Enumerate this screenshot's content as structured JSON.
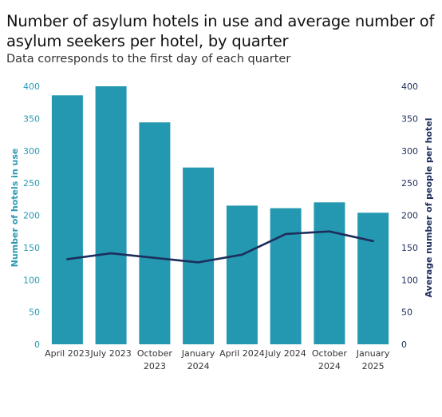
{
  "header": {
    "title": "Number of asylum hotels in use and average number of asylum seekers per hotel, by quarter",
    "subtitle": "Data corresponds to the first day of each quarter"
  },
  "colors": {
    "bar": "#2398b0",
    "line": "#1d2e5c",
    "left_axis": "#2a9ab2",
    "right_axis": "#1d2e5c"
  },
  "chart_data": {
    "type": "bar",
    "title": "Number of asylum hotels in use and average number of asylum seekers per hotel, by quarter",
    "subtitle": "Data corresponds to the first day of each quarter",
    "categories": [
      [
        "April 2023"
      ],
      [
        "July 2023"
      ],
      [
        "October",
        "2023"
      ],
      [
        "January",
        "2024"
      ],
      [
        "April 2024"
      ],
      [
        "July 2024"
      ],
      [
        "October",
        "2024"
      ],
      [
        "January",
        "2025"
      ]
    ],
    "series": [
      {
        "name": "Number of hotels in use",
        "type": "bar",
        "axis": "left",
        "values": [
          386,
          400,
          344,
          274,
          215,
          211,
          220,
          204
        ]
      },
      {
        "name": "Average number of people per hotel",
        "type": "line",
        "axis": "right",
        "values": [
          132,
          141,
          134,
          127,
          139,
          171,
          175,
          160
        ]
      }
    ],
    "ylabel_left": "Number of hotels in use",
    "ylabel_right": "Average number of people per hotel",
    "ylim_left": [
      0,
      400
    ],
    "ylim_right": [
      0,
      400
    ],
    "yticks": [
      0,
      50,
      100,
      150,
      200,
      250,
      300,
      350,
      400
    ],
    "grid": false,
    "legend": "none"
  }
}
